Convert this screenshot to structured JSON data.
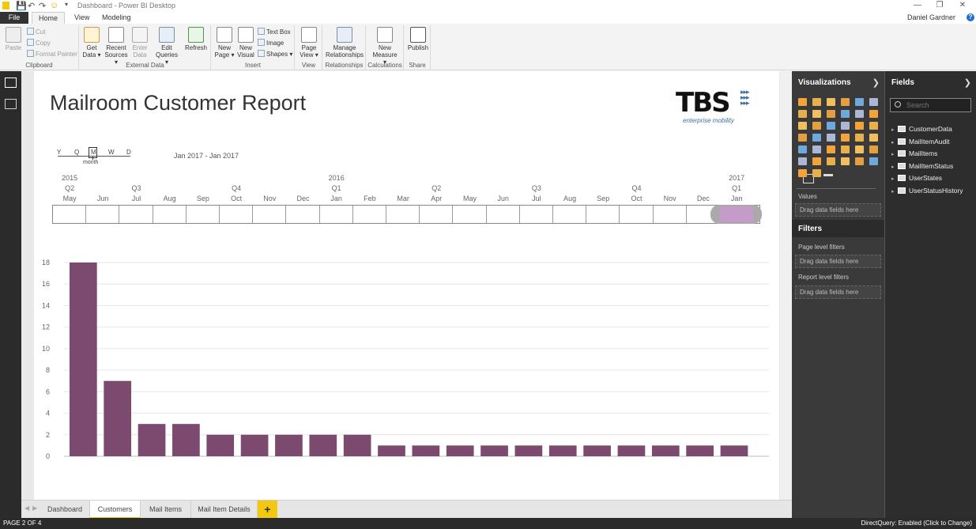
{
  "window": {
    "title": "Dashboard - Power BI Desktop",
    "user": "Daniel Gardner"
  },
  "ribbon_tabs": [
    "File",
    "Home",
    "View",
    "Modeling"
  ],
  "ribbon": {
    "clipboard": {
      "group": "Clipboard",
      "paste": "Paste",
      "cut": "Cut",
      "copy": "Copy",
      "format_painter": "Format Painter"
    },
    "external": {
      "group": "External Data",
      "get_data": [
        "Get",
        "Data ▾"
      ],
      "recent": [
        "Recent",
        "Sources ▾"
      ],
      "enter": [
        "Enter",
        "Data"
      ],
      "edit": [
        "Edit",
        "Queries ▾"
      ],
      "refresh": "Refresh"
    },
    "insert": {
      "group": "Insert",
      "new_page": [
        "New",
        "Page ▾"
      ],
      "new_visual": [
        "New",
        "Visual"
      ],
      "text_box": "Text Box",
      "image": "Image",
      "shapes": "Shapes ▾"
    },
    "view": {
      "group": "View",
      "page_view": [
        "Page",
        "View ▾"
      ]
    },
    "relationships": {
      "group": "Relationships",
      "manage": [
        "Manage",
        "Relationships"
      ]
    },
    "calculations": {
      "group": "Calculations",
      "new_measure": [
        "New",
        "Measure ▾"
      ]
    },
    "share": {
      "group": "Share",
      "publish": "Publish"
    }
  },
  "report": {
    "title": "Mailroom Customer Report",
    "logo": {
      "text": "TBS",
      "tagline": "enterprise mobility"
    }
  },
  "timeline": {
    "granularity": [
      "Y",
      "Q",
      "M",
      "W",
      "D"
    ],
    "selected_granularity": "month",
    "range_label": "Jan 2017 - Jan 2017",
    "years": [
      {
        "label": "2015",
        "col": 0
      },
      {
        "label": "2016",
        "col": 8
      },
      {
        "label": "2017",
        "col": 20
      }
    ],
    "quarters": [
      {
        "label": "Q2",
        "col": 0
      },
      {
        "label": "Q3",
        "col": 2
      },
      {
        "label": "Q4",
        "col": 5
      },
      {
        "label": "Q1",
        "col": 8
      },
      {
        "label": "Q2",
        "col": 11
      },
      {
        "label": "Q3",
        "col": 14
      },
      {
        "label": "Q4",
        "col": 17
      },
      {
        "label": "Q1",
        "col": 20
      }
    ],
    "months": [
      "May",
      "Jun",
      "Jul",
      "Aug",
      "Sep",
      "Oct",
      "Nov",
      "Dec",
      "Jan",
      "Feb",
      "Mar",
      "Apr",
      "May",
      "Jun",
      "Jul",
      "Aug",
      "Sep",
      "Oct",
      "Nov",
      "Dec",
      "Jan"
    ],
    "selected_index": 20
  },
  "chart_data": {
    "type": "bar",
    "values": [
      18,
      7,
      3,
      3,
      2,
      2,
      2,
      2,
      2,
      1,
      1,
      1,
      1,
      1,
      1,
      1,
      1,
      1,
      1,
      1
    ],
    "ylim": [
      0,
      18
    ],
    "yticks": [
      0,
      2,
      4,
      6,
      8,
      10,
      12,
      14,
      16,
      18
    ],
    "color": "#7b4a6e",
    "grid": true
  },
  "visualizations": {
    "title": "Visualizations",
    "values_label": "Values",
    "drag_hint": "Drag data fields here"
  },
  "filters": {
    "title": "Filters",
    "page_level": "Page level filters",
    "report_level": "Report level filters",
    "drag_hint": "Drag data fields here"
  },
  "fields": {
    "title": "Fields",
    "search_placeholder": "Search",
    "tables": [
      "CustomerData",
      "MailItemAudit",
      "MailItems",
      "MailItemStatus",
      "UserStates",
      "UserStatusHistory"
    ]
  },
  "page_tabs": {
    "tabs": [
      "Dashboard",
      "Customers",
      "Mail Items",
      "Mail Item Details"
    ],
    "active": 1,
    "add": "+"
  },
  "status": {
    "page": "PAGE 2 OF 4",
    "direct_query": "DirectQuery: Enabled (Click to Change)"
  }
}
